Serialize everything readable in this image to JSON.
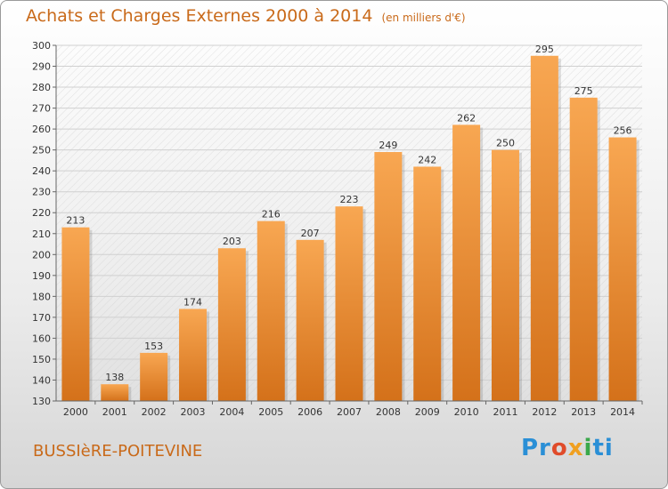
{
  "header": {
    "title": "Achats et Charges Externes 2000 à 2014",
    "subtitle": "(en milliers d'€)"
  },
  "footer": {
    "town": "BUSSIèRE-POITEVINE",
    "logo": {
      "p1": "Pr",
      "p2": "o",
      "p3": "x",
      "p4": "i",
      "p5": "ti"
    }
  },
  "colors": {
    "bar_top": "#f8a752",
    "bar_bottom": "#d4711a",
    "accent": "#c96a1a"
  },
  "chart_data": {
    "type": "bar",
    "title": "Achats et Charges Externes 2000 à 2014",
    "xlabel": "",
    "ylabel": "",
    "categories": [
      "2000",
      "2001",
      "2002",
      "2003",
      "2004",
      "2005",
      "2006",
      "2007",
      "2008",
      "2009",
      "2010",
      "2011",
      "2012",
      "2013",
      "2014"
    ],
    "values": [
      213,
      138,
      153,
      174,
      203,
      216,
      207,
      223,
      249,
      242,
      262,
      250,
      295,
      275,
      256
    ],
    "ylim": [
      130,
      300
    ],
    "yticks": [
      130,
      140,
      150,
      160,
      170,
      180,
      190,
      200,
      210,
      220,
      230,
      240,
      250,
      260,
      270,
      280,
      290,
      300
    ],
    "grid": true
  }
}
